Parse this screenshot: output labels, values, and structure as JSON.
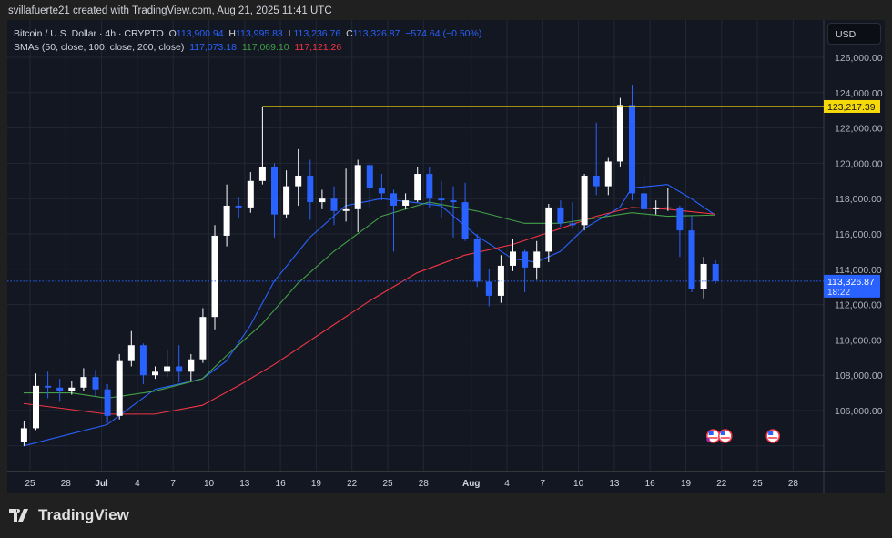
{
  "credit": "svillafuerte21 created with TradingView.com, Aug 21, 2025 11:41 UTC",
  "legend": {
    "symbol": "Bitcoin / U.S. Dollar · 4h · CRYPTO",
    "o_label": "O",
    "o": "113,900.94",
    "h_label": "H",
    "h": "113,995.83",
    "l_label": "L",
    "l": "113,236.76",
    "c_label": "C",
    "c": "113,326.87",
    "change": "−574.64 (−0.50%)",
    "sma_label": "SMAs (50, close, 100, close, 200, close)",
    "sma50": "117,073.18",
    "sma100": "117,069.10",
    "sma200": "117,121.26"
  },
  "currency": "USD",
  "more": "...",
  "logo_text": "TradingView",
  "colors": {
    "background": "#131722",
    "grid": "#232733",
    "up": "#ffffff",
    "down": "#2962ff",
    "sma50": "#2962ff",
    "sma100": "#43a047",
    "sma200": "#f23645",
    "resistance": "#f5d90a",
    "price": "#2962ff"
  },
  "chart_data": {
    "type": "candlestick",
    "ylim": [
      103000,
      127500
    ],
    "yticks": [
      "126,000.00",
      "124,000.00",
      "122,000.00",
      "120,000.00",
      "118,000.00",
      "116,000.00",
      "114,000.00",
      "112,000.00",
      "110,000.00",
      "108,000.00",
      "106,000.00"
    ],
    "ytick_values": [
      126000,
      124000,
      122000,
      120000,
      118000,
      116000,
      114000,
      112000,
      110000,
      108000,
      106000
    ],
    "xticks": [
      {
        "date": "2025-06-25",
        "label": "25"
      },
      {
        "date": "2025-06-28",
        "label": "28"
      },
      {
        "date": "2025-07-01",
        "label": "Jul"
      },
      {
        "date": "2025-07-04",
        "label": "4"
      },
      {
        "date": "2025-07-07",
        "label": "7"
      },
      {
        "date": "2025-07-10",
        "label": "10"
      },
      {
        "date": "2025-07-13",
        "label": "13"
      },
      {
        "date": "2025-07-16",
        "label": "16"
      },
      {
        "date": "2025-07-19",
        "label": "19"
      },
      {
        "date": "2025-07-22",
        "label": "22"
      },
      {
        "date": "2025-07-25",
        "label": "25"
      },
      {
        "date": "2025-07-28",
        "label": "28"
      },
      {
        "date": "2025-08-01",
        "label": "Aug"
      },
      {
        "date": "2025-08-04",
        "label": "4"
      },
      {
        "date": "2025-08-07",
        "label": "7"
      },
      {
        "date": "2025-08-10",
        "label": "10"
      },
      {
        "date": "2025-08-13",
        "label": "13"
      },
      {
        "date": "2025-08-16",
        "label": "16"
      },
      {
        "date": "2025-08-19",
        "label": "19"
      },
      {
        "date": "2025-08-22",
        "label": "22"
      },
      {
        "date": "2025-08-25",
        "label": "25"
      },
      {
        "date": "2025-08-28",
        "label": "28"
      }
    ],
    "candles": [
      [
        "2025-06-24",
        104200,
        105400,
        104000,
        105000
      ],
      [
        "2025-06-25",
        105000,
        108100,
        104900,
        107400
      ],
      [
        "2025-06-26",
        107400,
        108200,
        106700,
        107300
      ],
      [
        "2025-06-27",
        107300,
        107800,
        106500,
        107100
      ],
      [
        "2025-06-28",
        107100,
        107700,
        106900,
        107300
      ],
      [
        "2025-06-29",
        107300,
        108400,
        107100,
        107900
      ],
      [
        "2025-06-30",
        107900,
        108300,
        106800,
        107200
      ],
      [
        "2025-07-01",
        107200,
        107500,
        105300,
        105700
      ],
      [
        "2025-07-02",
        105700,
        109200,
        105500,
        108800
      ],
      [
        "2025-07-03",
        108800,
        110500,
        108500,
        109700
      ],
      [
        "2025-07-04",
        109700,
        109800,
        107500,
        108000
      ],
      [
        "2025-07-05",
        108000,
        108500,
        107800,
        108200
      ],
      [
        "2025-07-06",
        108200,
        109400,
        107900,
        108500
      ],
      [
        "2025-07-07",
        108500,
        109700,
        107600,
        108200
      ],
      [
        "2025-07-08",
        108200,
        109200,
        107700,
        108900
      ],
      [
        "2025-07-09",
        108900,
        111800,
        108700,
        111300
      ],
      [
        "2025-07-10",
        111300,
        116500,
        110600,
        115900
      ],
      [
        "2025-07-11",
        115900,
        118800,
        115300,
        117600
      ],
      [
        "2025-07-12",
        117600,
        118100,
        116900,
        117500
      ],
      [
        "2025-07-13",
        117500,
        119500,
        117200,
        119000
      ],
      [
        "2025-07-14",
        119000,
        123217,
        118800,
        119800
      ],
      [
        "2025-07-15",
        119800,
        120000,
        115800,
        117100
      ],
      [
        "2025-07-16",
        117100,
        119600,
        116900,
        118700
      ],
      [
        "2025-07-17",
        118700,
        120800,
        117600,
        119300
      ],
      [
        "2025-07-18",
        119300,
        120200,
        116800,
        117800
      ],
      [
        "2025-07-19",
        117800,
        118500,
        117400,
        118000
      ],
      [
        "2025-07-20",
        118000,
        118700,
        116500,
        117300
      ],
      [
        "2025-07-21",
        117300,
        119700,
        116700,
        117400
      ],
      [
        "2025-07-22",
        117400,
        120200,
        116100,
        119900
      ],
      [
        "2025-07-23",
        119900,
        120000,
        117500,
        118600
      ],
      [
        "2025-07-24",
        118600,
        119400,
        117900,
        118300
      ],
      [
        "2025-07-25",
        118300,
        118500,
        115000,
        117600
      ],
      [
        "2025-07-26",
        117600,
        118300,
        117400,
        117900
      ],
      [
        "2025-07-27",
        117900,
        119800,
        117800,
        119400
      ],
      [
        "2025-07-28",
        119400,
        119800,
        117500,
        118000
      ],
      [
        "2025-07-29",
        118000,
        119000,
        116900,
        117900
      ],
      [
        "2025-07-30",
        117900,
        118700,
        115800,
        117800
      ],
      [
        "2025-07-31",
        117800,
        118900,
        115600,
        115700
      ],
      [
        "2025-08-01",
        115700,
        116000,
        113000,
        113300
      ],
      [
        "2025-08-02",
        113300,
        114000,
        111900,
        112500
      ],
      [
        "2025-08-03",
        112500,
        114800,
        112100,
        114200
      ],
      [
        "2025-08-04",
        114200,
        115700,
        113900,
        115000
      ],
      [
        "2025-08-05",
        115000,
        115100,
        112700,
        114100
      ],
      [
        "2025-08-06",
        114100,
        115600,
        113400,
        115000
      ],
      [
        "2025-08-07",
        115000,
        117700,
        114400,
        117500
      ],
      [
        "2025-08-08",
        117500,
        117900,
        116400,
        116600
      ],
      [
        "2025-08-09",
        116600,
        117800,
        116300,
        116500
      ],
      [
        "2025-08-10",
        116500,
        119400,
        116200,
        119300
      ],
      [
        "2025-08-11",
        119300,
        122300,
        118200,
        118700
      ],
      [
        "2025-08-12",
        118700,
        120300,
        118200,
        120100
      ],
      [
        "2025-08-13",
        120100,
        123700,
        119800,
        123300
      ],
      [
        "2025-08-14",
        123300,
        124450,
        117900,
        118300
      ],
      [
        "2025-08-15",
        118300,
        119300,
        116800,
        117400
      ],
      [
        "2025-08-16",
        117400,
        117900,
        117100,
        117500
      ],
      [
        "2025-08-17",
        117500,
        118600,
        117300,
        117500
      ],
      [
        "2025-08-18",
        117500,
        117600,
        114700,
        116200
      ],
      [
        "2025-08-19",
        116200,
        117000,
        112700,
        112900
      ],
      [
        "2025-08-20",
        112900,
        114700,
        112350,
        114300
      ],
      [
        "2025-08-21",
        114300,
        114500,
        113200,
        113327
      ]
    ],
    "series": [
      {
        "name": "SMA 50",
        "points": [
          [
            "2025-06-24",
            104000
          ],
          [
            "2025-07-01",
            105200
          ],
          [
            "2025-07-05",
            107200
          ],
          [
            "2025-07-09",
            107800
          ],
          [
            "2025-07-11",
            108800
          ],
          [
            "2025-07-13",
            110800
          ],
          [
            "2025-07-15",
            113300
          ],
          [
            "2025-07-18",
            115800
          ],
          [
            "2025-07-21",
            117600
          ],
          [
            "2025-07-24",
            118000
          ],
          [
            "2025-07-29",
            117600
          ],
          [
            "2025-08-01",
            115900
          ],
          [
            "2025-08-04",
            114600
          ],
          [
            "2025-08-06",
            114400
          ],
          [
            "2025-08-08",
            115000
          ],
          [
            "2025-08-10",
            116300
          ],
          [
            "2025-08-13",
            117500
          ],
          [
            "2025-08-14",
            118600
          ],
          [
            "2025-08-17",
            118800
          ],
          [
            "2025-08-19",
            118000
          ],
          [
            "2025-08-21",
            117073
          ]
        ]
      },
      {
        "name": "SMA 100",
        "points": [
          [
            "2025-06-24",
            107000
          ],
          [
            "2025-06-28",
            107000
          ],
          [
            "2025-07-01",
            106700
          ],
          [
            "2025-07-05",
            107100
          ],
          [
            "2025-07-09",
            107800
          ],
          [
            "2025-07-11",
            109100
          ],
          [
            "2025-07-14",
            110900
          ],
          [
            "2025-07-17",
            113200
          ],
          [
            "2025-07-20",
            115000
          ],
          [
            "2025-07-24",
            117000
          ],
          [
            "2025-07-28",
            117800
          ],
          [
            "2025-08-01",
            117300
          ],
          [
            "2025-08-05",
            116600
          ],
          [
            "2025-08-08",
            116600
          ],
          [
            "2025-08-11",
            116900
          ],
          [
            "2025-08-14",
            117200
          ],
          [
            "2025-08-17",
            117000
          ],
          [
            "2025-08-21",
            117069
          ]
        ]
      },
      {
        "name": "SMA 200",
        "points": [
          [
            "2025-06-24",
            106400
          ],
          [
            "2025-07-01",
            105800
          ],
          [
            "2025-07-05",
            105800
          ],
          [
            "2025-07-09",
            106300
          ],
          [
            "2025-07-12",
            107400
          ],
          [
            "2025-07-15",
            108600
          ],
          [
            "2025-07-19",
            110400
          ],
          [
            "2025-07-23",
            112200
          ],
          [
            "2025-07-27",
            113800
          ],
          [
            "2025-07-31",
            114800
          ],
          [
            "2025-08-04",
            115400
          ],
          [
            "2025-08-08",
            116300
          ],
          [
            "2025-08-11",
            117000
          ],
          [
            "2025-08-14",
            117500
          ],
          [
            "2025-08-17",
            117400
          ],
          [
            "2025-08-21",
            117121
          ]
        ]
      }
    ],
    "resistance": {
      "value": 123217.39,
      "label": "123,217.39",
      "from": "2025-07-14"
    },
    "last_price": {
      "value": 113326.87,
      "label": "113,326.87",
      "countdown": "18:22"
    },
    "events": [
      {
        "date": "2025-08-21",
        "icon": "us-flag-icon"
      },
      {
        "date": "2025-08-22",
        "icon": "us-flag-icon"
      },
      {
        "date": "2025-08-26",
        "icon": "us-flag-icon"
      }
    ]
  }
}
